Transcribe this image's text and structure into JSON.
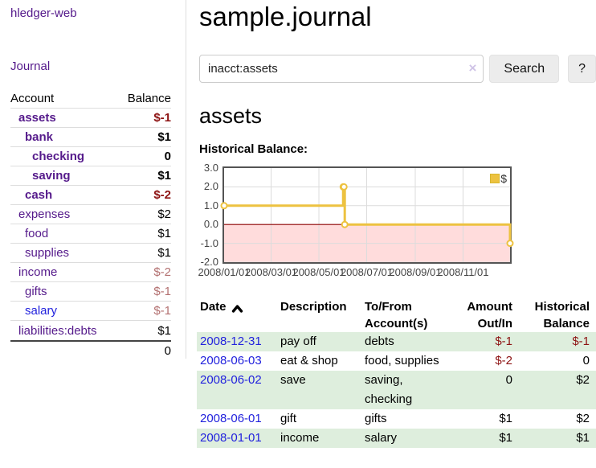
{
  "app": {
    "brand": "hledger-web",
    "nav": {
      "journal": "Journal"
    }
  },
  "sidebar": {
    "col_account": "Account",
    "col_balance": "Balance",
    "accounts": [
      {
        "name": "assets",
        "balance": "$-1",
        "level": 0,
        "bold": true,
        "balance_style": "negative-strong"
      },
      {
        "name": "bank",
        "balance": "$1",
        "level": 1,
        "bold": true,
        "balance_style": "normal"
      },
      {
        "name": "checking",
        "balance": "0",
        "level": 2,
        "bold": true,
        "balance_style": "normal"
      },
      {
        "name": "saving",
        "balance": "$1",
        "level": 2,
        "bold": true,
        "balance_style": "normal"
      },
      {
        "name": "cash",
        "balance": "$-2",
        "level": 1,
        "bold": true,
        "balance_style": "negative-strong"
      },
      {
        "name": "expenses",
        "balance": "$2",
        "level": 0,
        "bold": false,
        "balance_style": "normal"
      },
      {
        "name": "food",
        "balance": "$1",
        "level": 1,
        "bold": false,
        "balance_style": "normal"
      },
      {
        "name": "supplies",
        "balance": "$1",
        "level": 1,
        "bold": false,
        "balance_style": "normal"
      },
      {
        "name": "income",
        "balance": "$-2",
        "level": 0,
        "bold": false,
        "balance_style": "negative-muted"
      },
      {
        "name": "gifts",
        "balance": "$-1",
        "level": 1,
        "bold": false,
        "balance_style": "negative-muted"
      },
      {
        "name": "salary",
        "balance": "$-1",
        "level": 1,
        "bold": false,
        "balance_style": "negative-muted"
      },
      {
        "name": "liabilities:debts",
        "balance": "$1",
        "level": 0,
        "bold": false,
        "balance_style": "normal"
      }
    ],
    "total": "0"
  },
  "main": {
    "title": "sample.journal",
    "search": {
      "value": "inacct:assets",
      "clear_icon": "×",
      "button_label": "Search",
      "help_label": "?"
    },
    "account_heading": "assets",
    "chart_label": "Historical Balance:"
  },
  "chart_data": {
    "type": "line",
    "step": true,
    "title": "Historical Balance",
    "series": [
      {
        "name": "$",
        "color": "#edc240",
        "points": [
          [
            "2008/01/01",
            1
          ],
          [
            "2008/06/01",
            2
          ],
          [
            "2008/06/02",
            2
          ],
          [
            "2008/06/03",
            0
          ],
          [
            "2008/12/31",
            -1
          ]
        ]
      }
    ],
    "xlim": [
      "2008/01/01",
      "2008/12/31"
    ],
    "ylim": [
      -2,
      3
    ],
    "yticks": [
      "3.0",
      "2.0",
      "1.0",
      "0.0",
      "-1.0",
      "-2.0"
    ],
    "xticks": [
      "2008/01/01",
      "2008/03/01",
      "2008/05/01",
      "2008/07/01",
      "2008/09/01",
      "2008/11/01"
    ],
    "grid": true,
    "legend": {
      "label": "$",
      "position": "top-right",
      "swatch_color": "#edc240"
    },
    "negative_region_color": "#ffdcdc",
    "zero_line_color": "#8b0000"
  },
  "register": {
    "headers": {
      "date": "Date",
      "description": "Description",
      "accounts": "To/From Account(s)",
      "amount": "Amount Out/In",
      "balance": "Historical Balance"
    },
    "rows": [
      {
        "date": "2008-12-31",
        "description": "pay off",
        "accounts": "debts",
        "amount": "$-1",
        "balance": "$-1"
      },
      {
        "date": "2008-06-03",
        "description": "eat & shop",
        "accounts": "food, supplies",
        "amount": "$-2",
        "balance": "0"
      },
      {
        "date": "2008-06-02",
        "description": "save",
        "accounts": "saving, checking",
        "amount": "0",
        "balance": "$2"
      },
      {
        "date": "2008-06-01",
        "description": "gift",
        "accounts": "gifts",
        "amount": "$1",
        "balance": "$2"
      },
      {
        "date": "2008-01-01",
        "description": "income",
        "accounts": "salary",
        "amount": "$1",
        "balance": "$1"
      }
    ]
  }
}
